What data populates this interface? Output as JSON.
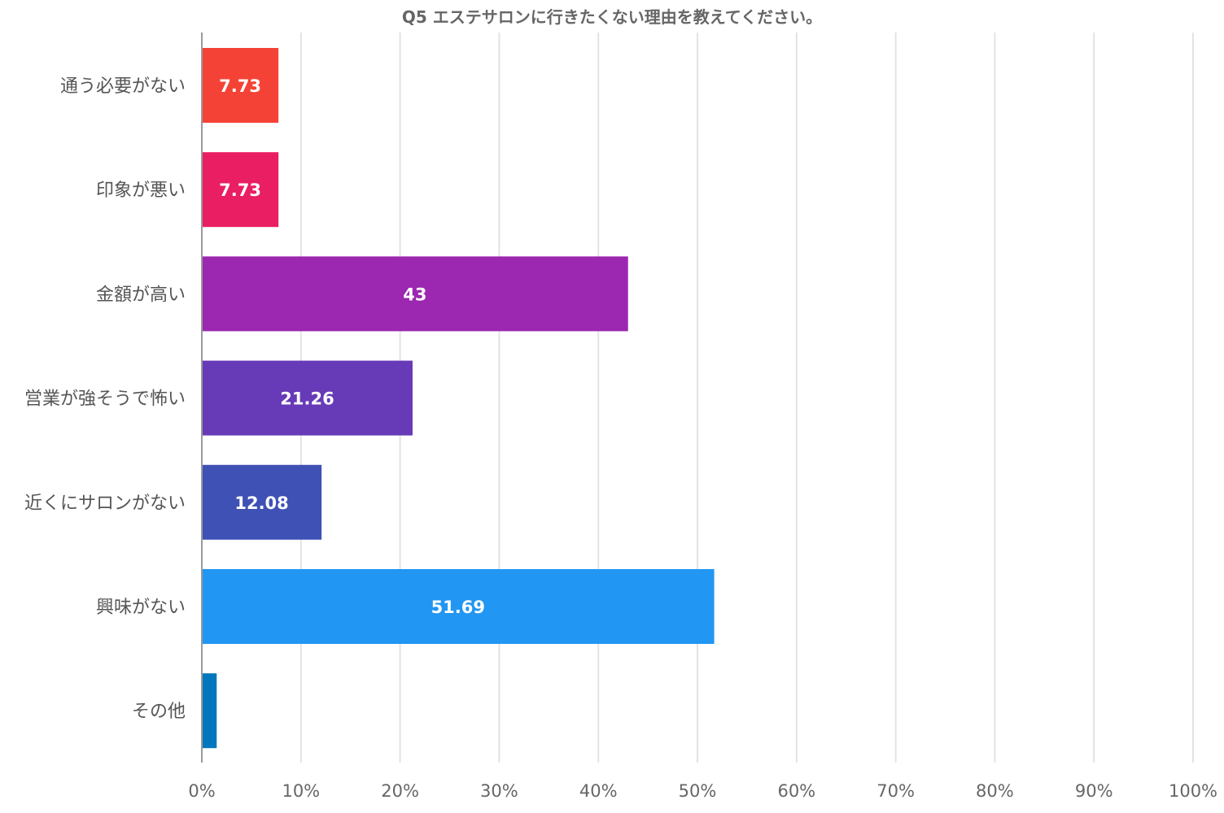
{
  "chart_data": {
    "type": "bar",
    "orientation": "horizontal",
    "title": "Q5 エステサロンに行きたくない理由を教えてください。",
    "categories": [
      "通う必要がない",
      "印象が悪い",
      "金額が高い",
      "営業が強そうで怖い",
      "近くにサロンがない",
      "興味がない",
      "その他"
    ],
    "values": [
      7.73,
      7.73,
      43,
      21.26,
      12.08,
      51.69,
      1.5
    ],
    "data_labels": [
      "7.73",
      "7.73",
      "43",
      "21.26",
      "12.08",
      "51.69",
      ""
    ],
    "colors": [
      "#f44336",
      "#e91e63",
      "#9c27b0",
      "#673ab7",
      "#3f51b5",
      "#2196f3",
      "#0277bd"
    ],
    "xlim": [
      0,
      100
    ],
    "xticks": [
      0,
      10,
      20,
      30,
      40,
      50,
      60,
      70,
      80,
      90,
      100
    ],
    "xtick_labels": [
      "0%",
      "10%",
      "20%",
      "30%",
      "40%",
      "50%",
      "60%",
      "70%",
      "80%",
      "90%",
      "100%"
    ],
    "grid": true,
    "xlabel": "",
    "ylabel": ""
  }
}
